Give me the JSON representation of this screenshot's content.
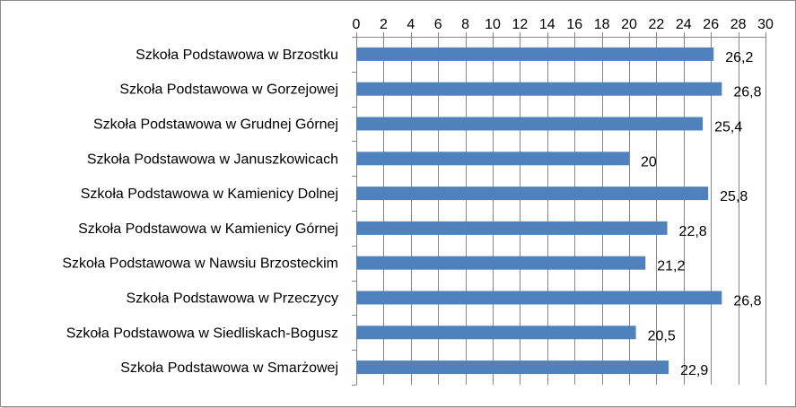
{
  "chart_data": {
    "type": "bar",
    "orientation": "horizontal",
    "categories": [
      "Szkoła Podstawowa w Brzostku",
      "Szkoła Podstawowa w Gorzejowej",
      "Szkoła Podstawowa w Grudnej Górnej",
      "Szkoła Podstawowa w Januszkowicach",
      "Szkoła Podstawowa w Kamienicy Dolnej",
      "Szkoła Podstawowa w Kamienicy Górnej",
      "Szkoła Podstawowa w Nawsiu Brzosteckim",
      "Szkoła Podstawowa w Przeczycy",
      "Szkoła Podstawowa w Siedliskach-Bogusz",
      "Szkoła Podstawowa w Smarżowej"
    ],
    "values": [
      26.2,
      26.8,
      25.4,
      20,
      25.8,
      22.8,
      21.2,
      26.8,
      20.5,
      22.9
    ],
    "value_labels": [
      "26,2",
      "26,8",
      "25,4",
      "20",
      "25,8",
      "22,8",
      "21,2",
      "26,8",
      "20,5",
      "22,9"
    ],
    "xlim": [
      0,
      30
    ],
    "x_ticks": [
      0,
      2,
      4,
      6,
      8,
      10,
      12,
      14,
      16,
      18,
      20,
      22,
      24,
      26,
      28,
      30
    ],
    "x_axis_position": "top",
    "grid": true,
    "legend": "none",
    "bar_color": "#4f81bd",
    "grid_color": "#868686"
  }
}
